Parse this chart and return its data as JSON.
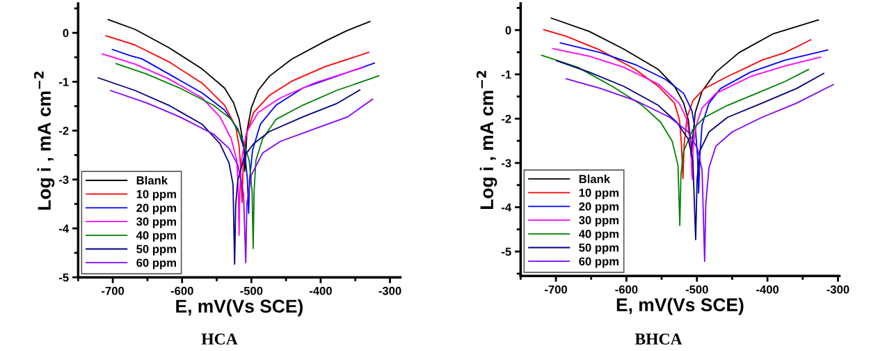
{
  "chart_data": [
    {
      "type": "line",
      "title": "HCA",
      "xlabel": "E, mV(Vs SCE)",
      "ylabel": "Log i , mA cm$^{−2}$",
      "xlim": [
        -750,
        -285
      ],
      "ylim": [
        -5,
        0.6
      ],
      "xticks": [
        -700,
        -600,
        -500,
        -400,
        -300
      ],
      "yticks": [
        -5,
        -4,
        -3,
        -2,
        -1,
        0
      ],
      "legend": "bottom left",
      "grid": false,
      "series": [
        {
          "name": "Blank",
          "color": "#000000",
          "x": [
            -706.5,
            -667.7,
            -619.4,
            -571.0,
            -538.7,
            -525.8,
            -517.7,
            -512.9,
            -510.3,
            -509.7,
            -508.1,
            -506.5,
            -500.0,
            -490.3,
            -474.2,
            -441.9,
            -393.5,
            -361.3,
            -329.0
          ],
          "values": [
            0.27,
            0.07,
            -0.3,
            -0.74,
            -1.13,
            -1.43,
            -1.77,
            -2.17,
            -2.51,
            -2.83,
            -2.51,
            -2.02,
            -1.53,
            -1.18,
            -0.89,
            -0.54,
            -0.17,
            0.05,
            0.23
          ]
        },
        {
          "name": "10 ppm",
          "color": "#ff0000",
          "x": [
            -709.7,
            -667.7,
            -619.4,
            -571.0,
            -538.7,
            -522.6,
            -517.7,
            -515.5,
            -513.5,
            -511.9,
            -508.1,
            -496.8,
            -474.2,
            -441.9,
            -393.5,
            -330.6
          ],
          "values": [
            -0.06,
            -0.25,
            -0.59,
            -1.03,
            -1.48,
            -1.92,
            -2.32,
            -2.76,
            -3.47,
            -2.76,
            -2.12,
            -1.63,
            -1.28,
            -0.99,
            -0.69,
            -0.4
          ]
        },
        {
          "name": "20 ppm",
          "color": "#0000ff",
          "x": [
            -700.6,
            -674.2,
            -658.1,
            -619.4,
            -571.0,
            -538.7,
            -519.4,
            -509.7,
            -505.8,
            -503.9,
            -502.6,
            -498.4,
            -487.1,
            -464.5,
            -425.8,
            -377.4,
            -322.6
          ],
          "values": [
            -0.34,
            -0.47,
            -0.53,
            -0.84,
            -1.23,
            -1.58,
            -1.97,
            -2.41,
            -3.0,
            -3.69,
            -3.0,
            -2.41,
            -1.87,
            -1.48,
            -1.13,
            -0.89,
            -0.62
          ]
        },
        {
          "name": "30 ppm",
          "color": "#ff00ff",
          "x": [
            -715.2,
            -667.7,
            -619.4,
            -571.0,
            -545.2,
            -529.0,
            -521.0,
            -518.7,
            -517.7,
            -516.8,
            -514.5,
            -506.5,
            -490.3,
            -458.1,
            -409.7,
            -337.1
          ],
          "values": [
            -0.43,
            -0.64,
            -0.94,
            -1.33,
            -1.72,
            -2.17,
            -2.61,
            -3.3,
            -4.14,
            -3.3,
            -2.61,
            -2.02,
            -1.63,
            -1.33,
            -1.03,
            -0.7
          ]
        },
        {
          "name": "40 ppm",
          "color": "#008000",
          "x": [
            -695.2,
            -651.6,
            -603.2,
            -554.8,
            -529.0,
            -512.9,
            -503.2,
            -499.0,
            -497.4,
            -496.1,
            -493.5,
            -483.9,
            -464.5,
            -425.8,
            -377.4,
            -316.1
          ],
          "values": [
            -0.63,
            -0.84,
            -1.13,
            -1.48,
            -1.77,
            -2.17,
            -2.61,
            -3.25,
            -4.41,
            -3.25,
            -2.61,
            -2.17,
            -1.77,
            -1.48,
            -1.18,
            -0.88
          ]
        },
        {
          "name": "50 ppm",
          "color": "#000080",
          "x": [
            -721.0,
            -667.7,
            -619.4,
            -571.0,
            -545.2,
            -532.3,
            -526.5,
            -524.2,
            -522.6,
            -519.4,
            -509.7,
            -496.8,
            -474.2,
            -425.8,
            -377.4,
            -343.5
          ],
          "values": [
            -0.92,
            -1.18,
            -1.48,
            -1.87,
            -2.27,
            -2.66,
            -3.1,
            -4.73,
            -3.5,
            -3.0,
            -2.51,
            -2.27,
            -2.02,
            -1.72,
            -1.45,
            -1.17
          ]
        },
        {
          "name": "60 ppm",
          "color": "#8000ff",
          "x": [
            -703.2,
            -651.6,
            -603.2,
            -554.8,
            -532.3,
            -519.4,
            -511.3,
            -508.1,
            -506.5,
            -500.0,
            -483.9,
            -458.1,
            -409.7,
            -361.3,
            -325.2
          ],
          "values": [
            -1.18,
            -1.43,
            -1.72,
            -2.07,
            -2.36,
            -2.71,
            -3.3,
            -4.7,
            -3.5,
            -2.91,
            -2.46,
            -2.22,
            -1.97,
            -1.72,
            -1.36
          ]
        }
      ]
    },
    {
      "type": "line",
      "title": "BHCA",
      "xlabel": "E, mV(Vs SCE)",
      "ylabel": "Log i , mA cm$^{−2}$",
      "xlim": [
        -750,
        -298
      ],
      "ylim": [
        -5.55,
        0.6
      ],
      "xticks": [
        -700,
        -600,
        -500,
        -400,
        -300
      ],
      "yticks": [
        -5,
        -4,
        -3,
        -2,
        -1,
        0
      ],
      "legend": "bottom left",
      "grid": false,
      "series": [
        {
          "name": "Blank",
          "color": "#000000",
          "x": [
            -706.5,
            -652.7,
            -603.7,
            -554.7,
            -531.8,
            -518.8,
            -512.2,
            -509.0,
            -508.3,
            -506.4,
            -502.4,
            -492.7,
            -473.1,
            -440.4,
            -391.4,
            -327.8
          ],
          "values": [
            0.27,
            -0.03,
            -0.43,
            -0.89,
            -1.27,
            -1.65,
            -2.03,
            -2.51,
            -2.84,
            -2.51,
            -1.86,
            -1.38,
            -0.95,
            -0.51,
            -0.08,
            0.23
          ]
        },
        {
          "name": "10 ppm",
          "color": "#ff0000",
          "x": [
            -717.3,
            -685.3,
            -636.3,
            -587.3,
            -554.7,
            -531.8,
            -524.7,
            -522.0,
            -519.8,
            -518.1,
            -513.9,
            -505.7,
            -489.4,
            -456.7,
            -407.8,
            -375.2,
            -338.5
          ],
          "values": [
            0.01,
            -0.14,
            -0.46,
            -0.89,
            -1.27,
            -1.65,
            -2.03,
            -2.57,
            -3.35,
            -2.57,
            -1.97,
            -1.59,
            -1.32,
            -1.05,
            -0.68,
            -0.51,
            -0.22
          ]
        },
        {
          "name": "20 ppm",
          "color": "#0000ff",
          "x": [
            -693.8,
            -636.3,
            -587.3,
            -544.9,
            -518.8,
            -507.3,
            -501.8,
            -499.2,
            -497.6,
            -495.9,
            -492.7,
            -482.9,
            -466.5,
            -424.1,
            -375.1,
            -314.7
          ],
          "values": [
            -0.29,
            -0.51,
            -0.78,
            -1.11,
            -1.43,
            -1.81,
            -2.3,
            -2.84,
            -3.68,
            -2.84,
            -2.14,
            -1.65,
            -1.32,
            -0.95,
            -0.68,
            -0.45
          ]
        },
        {
          "name": "30 ppm",
          "color": "#ff00ff",
          "x": [
            -704.2,
            -652.7,
            -603.7,
            -554.7,
            -525.3,
            -513.9,
            -509.0,
            -506.7,
            -505.0,
            -500.8,
            -492.7,
            -473.1,
            -424.1,
            -375.1,
            -324.5
          ],
          "values": [
            -0.42,
            -0.59,
            -0.84,
            -1.22,
            -1.65,
            -2.03,
            -2.57,
            -3.37,
            -2.57,
            -2.14,
            -1.76,
            -1.43,
            -1.05,
            -0.81,
            -0.61
          ]
        },
        {
          "name": "40 ppm",
          "color": "#008000",
          "x": [
            -720.2,
            -669.0,
            -620.0,
            -577.6,
            -551.4,
            -535.1,
            -526.9,
            -524.3,
            -522.7,
            -518.8,
            -505.7,
            -489.4,
            -456.7,
            -407.8,
            -375.1,
            -341.8
          ],
          "values": [
            -0.57,
            -0.84,
            -1.27,
            -1.7,
            -2.08,
            -2.51,
            -3.05,
            -4.41,
            -3.27,
            -2.73,
            -2.24,
            -1.97,
            -1.7,
            -1.38,
            -1.16,
            -0.89
          ]
        },
        {
          "name": "50 ppm",
          "color": "#000080",
          "x": [
            -699.0,
            -652.7,
            -603.7,
            -554.7,
            -528.6,
            -512.2,
            -505.7,
            -501.8,
            -499.8,
            -495.9,
            -482.9,
            -456.7,
            -407.8,
            -358.8,
            -320.2
          ],
          "values": [
            -0.69,
            -0.95,
            -1.27,
            -1.7,
            -2.08,
            -2.46,
            -2.95,
            -4.73,
            -3.38,
            -2.73,
            -2.3,
            -1.97,
            -1.65,
            -1.32,
            -0.98
          ]
        },
        {
          "name": "60 ppm",
          "color": "#8000ff",
          "x": [
            -685.3,
            -636.3,
            -587.3,
            -538.4,
            -512.2,
            -499.2,
            -492.7,
            -489.1,
            -487.4,
            -482.9,
            -473.1,
            -450.2,
            -407.8,
            -358.8,
            -306.5
          ],
          "values": [
            -1.1,
            -1.32,
            -1.59,
            -1.97,
            -2.3,
            -2.68,
            -3.16,
            -5.22,
            -3.92,
            -3.11,
            -2.62,
            -2.3,
            -1.97,
            -1.65,
            -1.23
          ]
        }
      ]
    }
  ]
}
